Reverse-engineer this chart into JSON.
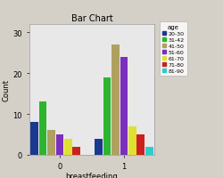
{
  "title": "Bar Chart",
  "xlabel": "breastfeeding",
  "ylabel": "Count",
  "legend_title": "age",
  "legend_labels": [
    "20-30",
    "31-42",
    "41-50",
    "51-60",
    "61-70",
    "71-80",
    "81-90"
  ],
  "legend_colors": [
    "#1a3a8f",
    "#2db52d",
    "#b0a060",
    "#7b2fbe",
    "#e0e030",
    "#cc2020",
    "#30cccc"
  ],
  "x_tick_labels": [
    "0",
    "1"
  ],
  "group_data": {
    "0": [
      8,
      13,
      6,
      5,
      4,
      2,
      0
    ],
    "1": [
      4,
      19,
      27,
      24,
      7,
      5,
      2
    ]
  },
  "ylim": [
    0,
    32
  ],
  "yticks": [
    0,
    10,
    20,
    30
  ],
  "background_color": "#d4d0c8",
  "plot_bg_color": "#e8e8e8",
  "bar_width": 0.055,
  "group_centers": [
    0.3,
    0.72
  ]
}
